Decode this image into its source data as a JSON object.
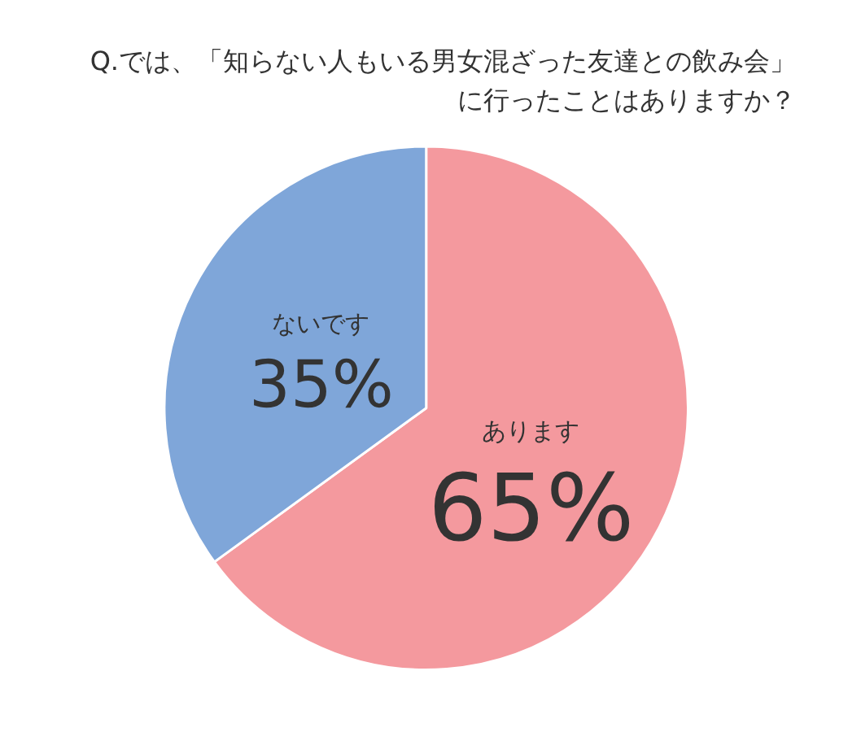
{
  "chart_data": {
    "type": "pie",
    "title": "Q.では、「知らない人もいる男女混ざった友達との飲み会」に行ったことはありますか？",
    "categories": [
      "あります",
      "ないです"
    ],
    "values": [
      65,
      35
    ],
    "colors": [
      "#f4999e",
      "#7fa6d9"
    ],
    "value_labels": [
      "65%",
      "35%"
    ]
  }
}
